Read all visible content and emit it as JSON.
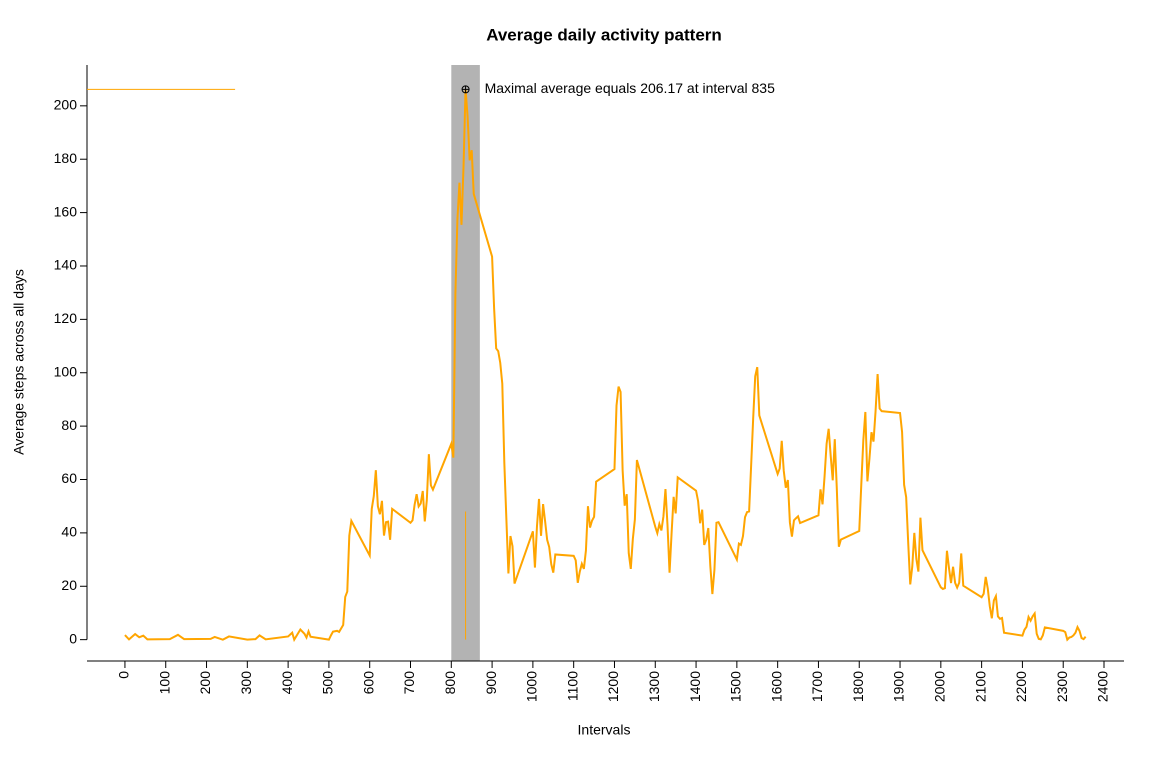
{
  "chart_data": {
    "type": "line",
    "title": "Average daily activity pattern",
    "x_label": "Intervals",
    "y_label": "Average steps across all days",
    "color": "#FFA500",
    "x": [
      0,
      10,
      25,
      35,
      45,
      55,
      110,
      130,
      145,
      210,
      220,
      240,
      255,
      300,
      320,
      330,
      345,
      400,
      410,
      415,
      430,
      440,
      445,
      450,
      455,
      500,
      505,
      510,
      520,
      525,
      535,
      540,
      545,
      550,
      555,
      600,
      605,
      610,
      615,
      620,
      625,
      630,
      635,
      640,
      645,
      650,
      655,
      700,
      705,
      710,
      715,
      720,
      725,
      730,
      735,
      740,
      745,
      750,
      755,
      800,
      805,
      810,
      815,
      820,
      825,
      830,
      835,
      840,
      845,
      850,
      855,
      900,
      905,
      910,
      915,
      920,
      925,
      930,
      935,
      940,
      945,
      950,
      955,
      1000,
      1005,
      1010,
      1015,
      1020,
      1025,
      1030,
      1035,
      1040,
      1045,
      1050,
      1055,
      1100,
      1105,
      1110,
      1115,
      1120,
      1125,
      1130,
      1135,
      1140,
      1145,
      1150,
      1155,
      1200,
      1205,
      1210,
      1215,
      1220,
      1225,
      1230,
      1235,
      1240,
      1245,
      1250,
      1255,
      1300,
      1305,
      1310,
      1315,
      1320,
      1325,
      1330,
      1335,
      1340,
      1345,
      1350,
      1355,
      1400,
      1405,
      1410,
      1415,
      1420,
      1425,
      1430,
      1435,
      1440,
      1445,
      1450,
      1455,
      1500,
      1505,
      1510,
      1515,
      1520,
      1525,
      1530,
      1535,
      1540,
      1545,
      1550,
      1555,
      1600,
      1605,
      1610,
      1615,
      1620,
      1625,
      1630,
      1635,
      1640,
      1645,
      1650,
      1655,
      1700,
      1705,
      1710,
      1715,
      1720,
      1725,
      1730,
      1735,
      1740,
      1745,
      1750,
      1755,
      1800,
      1805,
      1810,
      1815,
      1820,
      1825,
      1830,
      1835,
      1840,
      1845,
      1850,
      1855,
      1900,
      1905,
      1910,
      1915,
      1920,
      1925,
      1930,
      1935,
      1940,
      1945,
      1950,
      1955,
      2000,
      2005,
      2010,
      2015,
      2020,
      2025,
      2030,
      2035,
      2040,
      2045,
      2050,
      2055,
      2100,
      2105,
      2110,
      2115,
      2120,
      2125,
      2130,
      2135,
      2140,
      2145,
      2150,
      2155,
      2200,
      2205,
      2210,
      2215,
      2220,
      2225,
      2230,
      2235,
      2240,
      2245,
      2250,
      2255,
      2300,
      2305,
      2310,
      2315,
      2320,
      2325,
      2330,
      2335,
      2340,
      2345,
      2350,
      2355
    ],
    "values": [
      1.7,
      0.1,
      2.1,
      0.9,
      1.5,
      0.1,
      0.2,
      1.8,
      0.2,
      0.3,
      1.0,
      0,
      1.2,
      0,
      0.2,
      1.6,
      0.1,
      1.2,
      2.6,
      0,
      3.8,
      2.2,
      0.8,
      3.1,
      1.1,
      0,
      1.6,
      3.0,
      3.3,
      2.9,
      5.5,
      16,
      18,
      39,
      44.5,
      31.5,
      49,
      53.8,
      63.5,
      50,
      47,
      52,
      39,
      44,
      44.2,
      37.4,
      49,
      43.8,
      44.7,
      50.5,
      54.5,
      49.9,
      51,
      55.7,
      44.3,
      52.3,
      69.5,
      57.8,
      56.2,
      73.4,
      68.2,
      129.4,
      157.5,
      171.2,
      155.4,
      177.3,
      206.2,
      195.9,
      179.6,
      183.4,
      167,
      143.5,
      124,
      109.1,
      108.1,
      103.7,
      95.9,
      66.2,
      45.2,
      24.8,
      38.8,
      35,
      21,
      40.6,
      27,
      42.4,
      52.7,
      38.9,
      50.8,
      44.3,
      37.4,
      34.7,
      28.3,
      25.1,
      31.9,
      31.4,
      29.7,
      21.3,
      25.5,
      28.4,
      26.5,
      33.4,
      50,
      42,
      44.6,
      46,
      59.2,
      63.9,
      87.7,
      94.8,
      92.8,
      63.4,
      50.2,
      54.5,
      32.4,
      26.5,
      37.7,
      45,
      67.3,
      42.3,
      39.9,
      43.3,
      40.9,
      46.2,
      56.4,
      42.8,
      25.1,
      39.9,
      53.5,
      47.3,
      60.8,
      55.8,
      51.9,
      43.6,
      48.7,
      35.5,
      37.5,
      41.8,
      27.5,
      17.1,
      26.1,
      43.8,
      44,
      30,
      36,
      35.5,
      38.8,
      45.9,
      47.8,
      48,
      65.3,
      82.9,
      98.7,
      102.1,
      84,
      62.1,
      64.1,
      74.5,
      63.2,
      56.9,
      59.8,
      43.9,
      38.6,
      44.7,
      45.5,
      46.2,
      43.7,
      46.6,
      56.3,
      50.7,
      61.2,
      73.4,
      79,
      68.9,
      59.7,
      75.1,
      56.5,
      34.8,
      37.5,
      40.7,
      58,
      74.7,
      85.3,
      59.3,
      67.8,
      77.7,
      74.2,
      85.6,
      99.5,
      86.6,
      85.6,
      84.9,
      77.8,
      58,
      53.4,
      36.3,
      20.7,
      27.4,
      40,
      30.2,
      25.5,
      45.7,
      33.5,
      19.6,
      19,
      19.3,
      33.3,
      26.8,
      21.2,
      27.3,
      21.3,
      19.5,
      21.3,
      32.3,
      20.2,
      15.9,
      17.2,
      23.5,
      19.2,
      12.5,
      8,
      14.7,
      16.3,
      8.7,
      7.8,
      8.1,
      2.6,
      1.5,
      3.7,
      4.8,
      8.5,
      7.1,
      8.7,
      9.8,
      2.2,
      0.3,
      0.1,
      1.6,
      4.6,
      3.3,
      2.8,
      0,
      0.8,
      1,
      1.6,
      2.6,
      4.7,
      3.3,
      0.6,
      0.2,
      1.1
    ],
    "xlim": [
      -93,
      2449
    ],
    "ylim": [
      -8,
      215.3
    ],
    "xticks": [
      0,
      100,
      200,
      300,
      400,
      500,
      600,
      700,
      800,
      900,
      1000,
      1100,
      1200,
      1300,
      1400,
      1500,
      1600,
      1700,
      1800,
      1900,
      2000,
      2100,
      2200,
      2300,
      2400
    ],
    "yticks": [
      0,
      20,
      40,
      60,
      80,
      100,
      120,
      140,
      160,
      180,
      200
    ],
    "highlight_band": [
      800,
      870
    ],
    "highlight_color": "#b3b3b3",
    "max_point": {
      "x": 835,
      "y": 206.17
    },
    "max_hline_x_end": 270,
    "max_vline_y_end": 48,
    "annotation": "Maximal average equals 206.17 at interval 835"
  }
}
